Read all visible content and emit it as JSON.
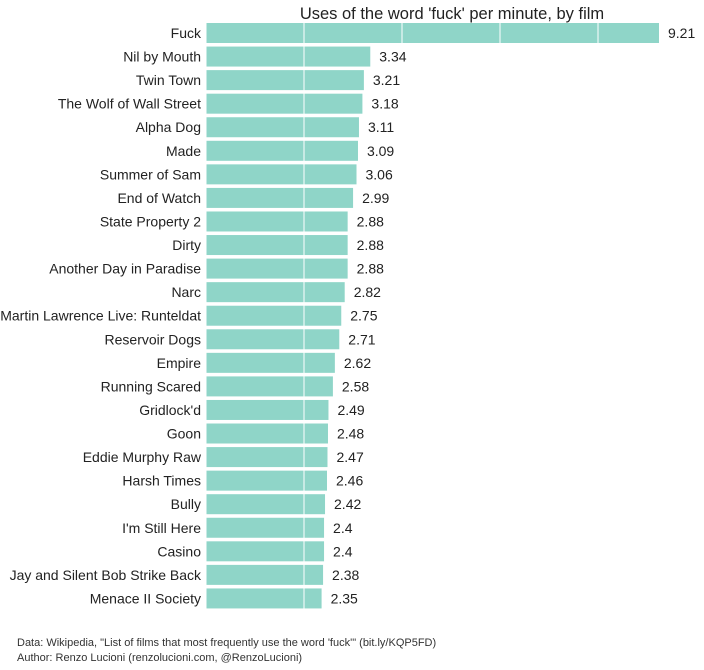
{
  "chart_data": {
    "type": "bar",
    "orientation": "horizontal",
    "title": "Uses of the word 'fuck' per minute, by film",
    "xlabel": "",
    "ylabel": "",
    "xlim": [
      0,
      9.21
    ],
    "grid": "vertical, white, drawn over bars",
    "bar_color": "#8fd5c8",
    "categories": [
      "Fuck",
      "Nil by Mouth",
      "Twin Town",
      "The Wolf of Wall Street",
      "Alpha Dog",
      "Made",
      "Summer of Sam",
      "End of Watch",
      "State Property 2",
      "Dirty",
      "Another Day in Paradise",
      "Narc",
      "Martin Lawrence Live: Runteldat",
      "Reservoir Dogs",
      "Empire",
      "Running Scared",
      "Gridlock'd",
      "Goon",
      "Eddie Murphy Raw",
      "Harsh Times",
      "Bully",
      "I'm Still Here",
      "Casino",
      "Jay and Silent Bob Strike Back",
      "Menace II Society"
    ],
    "values": [
      9.21,
      3.34,
      3.21,
      3.18,
      3.11,
      3.09,
      3.06,
      2.99,
      2.88,
      2.88,
      2.88,
      2.82,
      2.75,
      2.71,
      2.62,
      2.58,
      2.49,
      2.48,
      2.47,
      2.46,
      2.42,
      2.4,
      2.4,
      2.38,
      2.35
    ],
    "value_labels": [
      "9.21",
      "3.34",
      "3.21",
      "3.18",
      "3.11",
      "3.09",
      "3.06",
      "2.99",
      "2.88",
      "2.88",
      "2.88",
      "2.82",
      "2.75",
      "2.71",
      "2.62",
      "2.58",
      "2.49",
      "2.48",
      "2.47",
      "2.46",
      "2.42",
      "2.4",
      "2.4",
      "2.38",
      "2.35"
    ]
  },
  "footer": {
    "source": "Data: Wikipedia, \"List of films that most frequently use the word 'fuck'\" (bit.ly/KQP5FD)",
    "author": "Author: Renzo Lucioni (renzolucioni.com, @RenzoLucioni)"
  }
}
